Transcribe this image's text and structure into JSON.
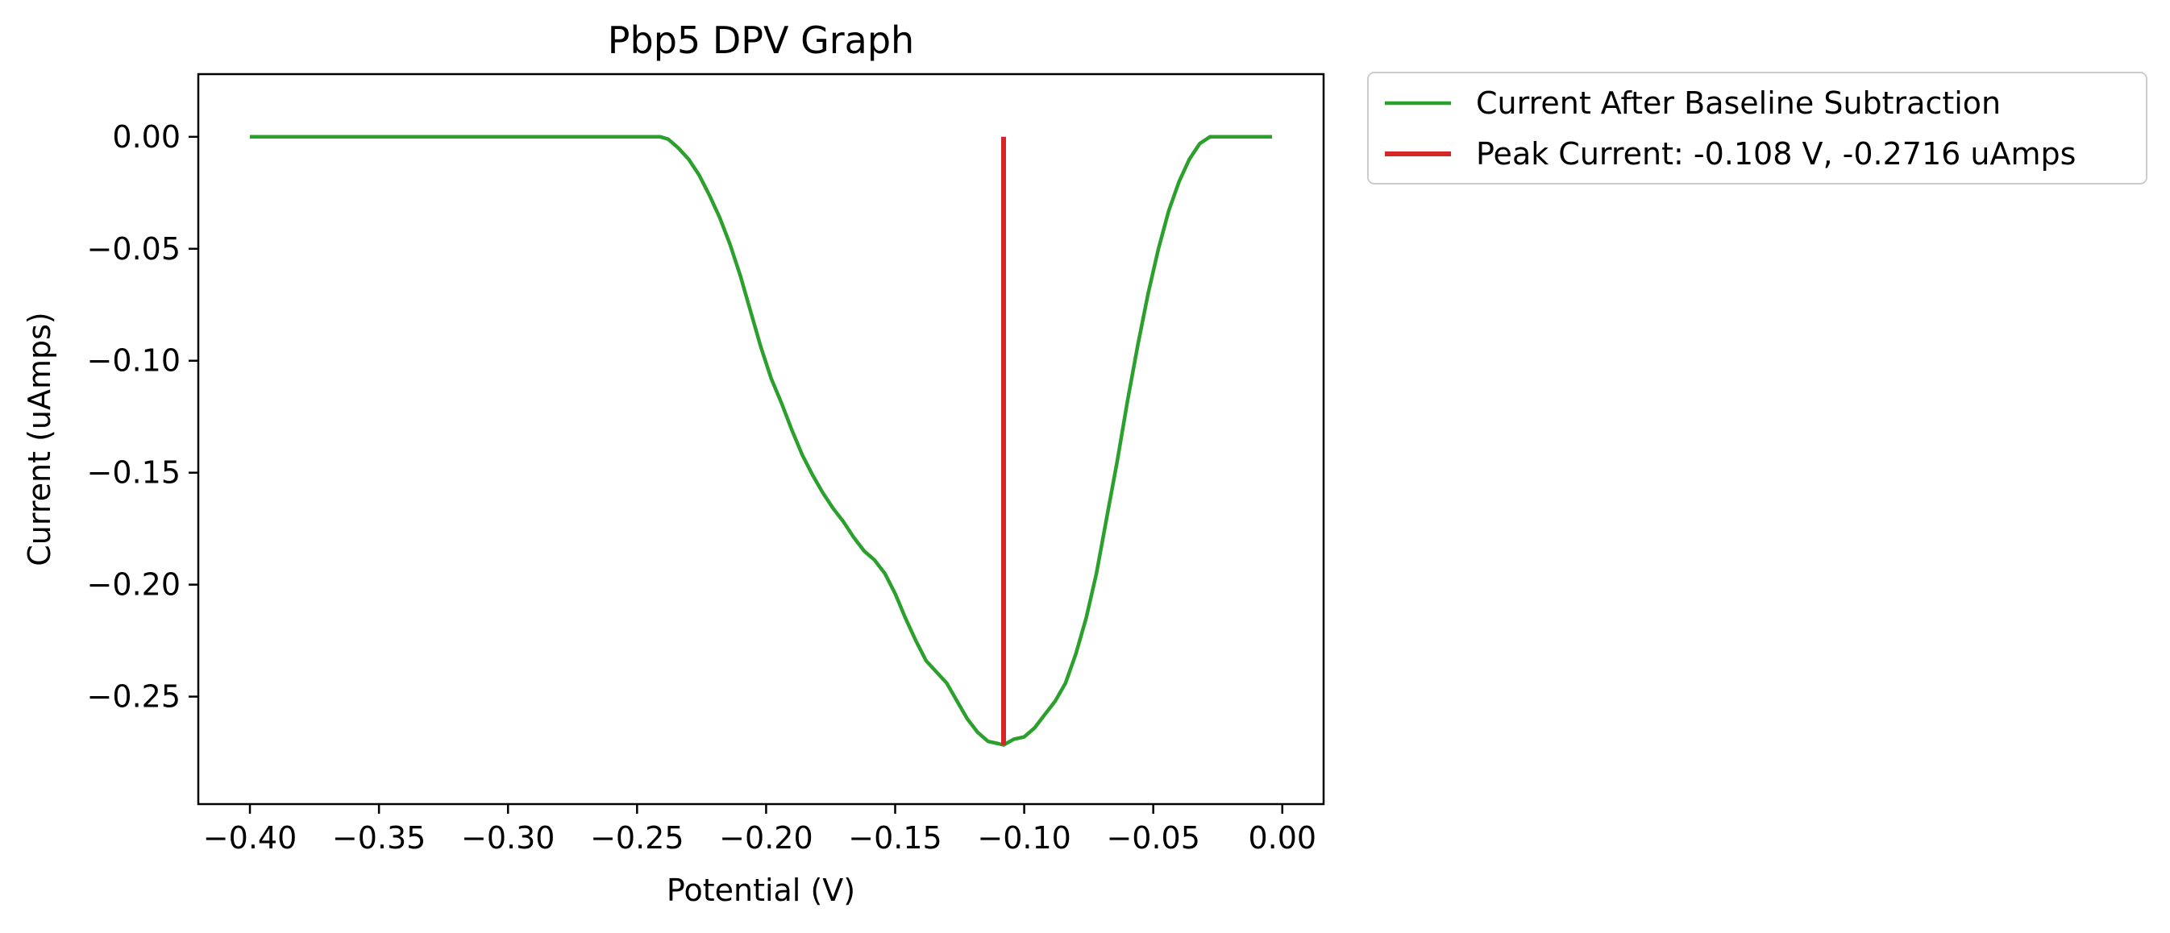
{
  "chart_data": {
    "type": "line",
    "title": "Pbp5 DPV Graph",
    "xlabel": "Potential (V)",
    "ylabel": "Current (uAmps)",
    "xlim": [
      -0.42,
      0.016
    ],
    "ylim": [
      -0.298,
      0.028
    ],
    "xticks": [
      -0.4,
      -0.35,
      -0.3,
      -0.25,
      -0.2,
      -0.15,
      -0.1,
      -0.05,
      0.0
    ],
    "xtick_labels": [
      "−0.40",
      "−0.35",
      "−0.30",
      "−0.25",
      "−0.20",
      "−0.15",
      "−0.10",
      "−0.05",
      "0.00"
    ],
    "yticks": [
      0.0,
      -0.05,
      -0.1,
      -0.15,
      -0.2,
      -0.25
    ],
    "ytick_labels": [
      "0.00",
      "−0.05",
      "−0.10",
      "−0.15",
      "−0.20",
      "−0.25"
    ],
    "grid": false,
    "legend_position": "outside-top-right",
    "series": [
      {
        "name": "Current After Baseline Subtraction",
        "color": "#2ca02c",
        "x": [
          -0.4,
          -0.35,
          -0.3,
          -0.25,
          -0.245,
          -0.241,
          -0.238,
          -0.234,
          -0.23,
          -0.226,
          -0.222,
          -0.218,
          -0.214,
          -0.21,
          -0.206,
          -0.202,
          -0.198,
          -0.194,
          -0.19,
          -0.186,
          -0.182,
          -0.178,
          -0.174,
          -0.17,
          -0.166,
          -0.162,
          -0.158,
          -0.154,
          -0.15,
          -0.146,
          -0.142,
          -0.138,
          -0.134,
          -0.13,
          -0.126,
          -0.122,
          -0.118,
          -0.114,
          -0.11,
          -0.108,
          -0.104,
          -0.1,
          -0.096,
          -0.092,
          -0.088,
          -0.084,
          -0.08,
          -0.076,
          -0.072,
          -0.068,
          -0.064,
          -0.06,
          -0.056,
          -0.052,
          -0.048,
          -0.044,
          -0.04,
          -0.036,
          -0.032,
          -0.028,
          -0.024,
          -0.02,
          -0.016,
          -0.012,
          -0.008,
          -0.004
        ],
        "y": [
          0.0,
          0.0,
          0.0,
          0.0,
          0.0,
          0.0,
          -0.001,
          -0.005,
          -0.01,
          -0.017,
          -0.026,
          -0.036,
          -0.048,
          -0.062,
          -0.078,
          -0.094,
          -0.108,
          -0.119,
          -0.131,
          -0.142,
          -0.151,
          -0.159,
          -0.166,
          -0.172,
          -0.179,
          -0.185,
          -0.189,
          -0.195,
          -0.204,
          -0.215,
          -0.225,
          -0.234,
          -0.239,
          -0.244,
          -0.252,
          -0.26,
          -0.266,
          -0.27,
          -0.271,
          -0.2716,
          -0.269,
          -0.268,
          -0.264,
          -0.258,
          -0.252,
          -0.244,
          -0.231,
          -0.215,
          -0.195,
          -0.17,
          -0.145,
          -0.118,
          -0.093,
          -0.07,
          -0.05,
          -0.033,
          -0.02,
          -0.01,
          -0.003,
          0.0,
          0.0,
          0.0,
          0.0,
          0.0,
          0.0,
          0.0
        ]
      },
      {
        "name": "Peak Current: -0.108 V, -0.2716 uAmps",
        "color": "#d62728",
        "x": [
          -0.108,
          -0.108
        ],
        "y": [
          0.0,
          -0.2716
        ]
      }
    ]
  }
}
